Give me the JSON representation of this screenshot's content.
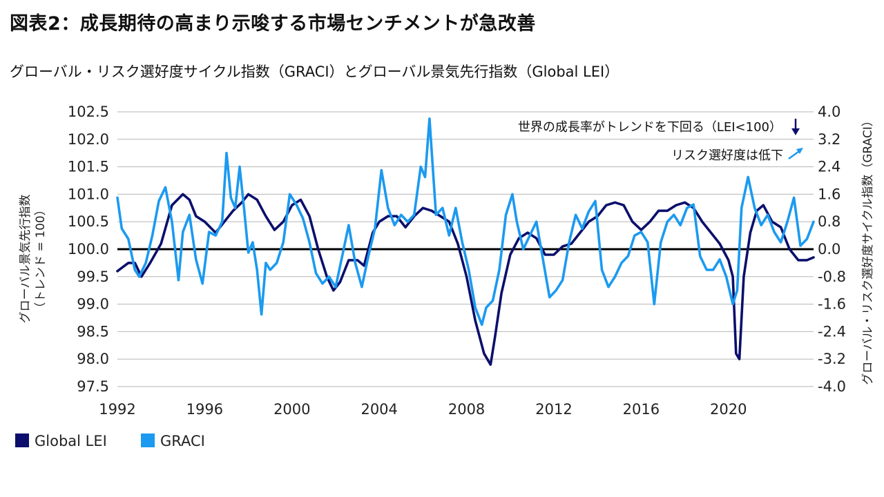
{
  "title": "図表2：成長期待の高まり示唆する市場センチメントが急改善",
  "subtitle": "グローバル・リスク選好度サイクル指数（GRACI）とグローバル景気先行指数（Global LEI）",
  "colors": {
    "lei": "#0b0f6b",
    "graci": "#1b9af0",
    "grid": "#b5b5b5",
    "zero": "#000000"
  },
  "chart_data": {
    "type": "line",
    "x_ticks": [
      "1992",
      "1996",
      "2000",
      "2004",
      "2008",
      "2012",
      "2016",
      "2020"
    ],
    "x_range": [
      1992,
      2023.9
    ],
    "y_left": {
      "label_line1": "グローバル景気先行指数",
      "label_line2": "（トレンド = 100）",
      "range": [
        97.5,
        102.5
      ],
      "ticks": [
        "102.5",
        "102.0",
        "101.5",
        "101.0",
        "100.5",
        "100.0",
        "99.5",
        "99.0",
        "98.5",
        "98.0",
        "97.5"
      ]
    },
    "y_right": {
      "label": "グローバル・リスク選好度サイクル指数（GRACI）",
      "range": [
        -4.0,
        4.0
      ],
      "ticks": [
        "4.0",
        "3.2",
        "2.4",
        "1.6",
        "0.8",
        "0.0",
        "-0.8",
        "-1.6",
        "-2.4",
        "-3.2",
        "-4.0"
      ]
    },
    "annotations": [
      {
        "text": "世界の成長率がトレンドを下回る（LEI<100）",
        "arrow": "down"
      },
      {
        "text": "リスク選好度は低下",
        "arrow": "up-right"
      }
    ],
    "series": [
      {
        "name": "Global LEI",
        "axis": "left",
        "x": [
          1992,
          1992.5,
          1992.8,
          1993.1,
          1993.5,
          1994,
          1994.5,
          1995,
          1995.3,
          1995.6,
          1996,
          1996.5,
          1996.9,
          1997.3,
          1997.7,
          1998,
          1998.4,
          1998.8,
          1999.2,
          1999.6,
          2000,
          2000.4,
          2000.8,
          2001.2,
          2001.6,
          2001.9,
          2002.2,
          2002.6,
          2003,
          2003.3,
          2003.7,
          2004,
          2004.4,
          2004.8,
          2005.2,
          2005.6,
          2006,
          2006.4,
          2006.8,
          2007.2,
          2007.6,
          2008,
          2008.4,
          2008.8,
          2009.1,
          2009.3,
          2009.6,
          2010,
          2010.4,
          2010.8,
          2011.2,
          2011.6,
          2012,
          2012.4,
          2012.8,
          2013.2,
          2013.6,
          2014,
          2014.4,
          2014.8,
          2015.2,
          2015.6,
          2016,
          2016.4,
          2016.8,
          2017.2,
          2017.6,
          2018,
          2018.4,
          2018.8,
          2019.2,
          2019.6,
          2020,
          2020.2,
          2020.35,
          2020.5,
          2020.7,
          2021,
          2021.3,
          2021.6,
          2022,
          2022.4,
          2022.8,
          2023.2,
          2023.6,
          2023.9
        ],
        "values": [
          99.6,
          99.75,
          99.75,
          99.5,
          99.75,
          100.1,
          100.8,
          101.0,
          100.9,
          100.6,
          100.5,
          100.3,
          100.5,
          100.7,
          100.85,
          101.0,
          100.9,
          100.6,
          100.35,
          100.5,
          100.8,
          100.9,
          100.6,
          100.0,
          99.5,
          99.25,
          99.4,
          99.8,
          99.8,
          99.7,
          100.3,
          100.5,
          100.6,
          100.6,
          100.4,
          100.6,
          100.75,
          100.7,
          100.6,
          100.5,
          100.1,
          99.5,
          98.7,
          98.1,
          97.9,
          98.4,
          99.2,
          99.9,
          100.2,
          100.3,
          100.2,
          99.9,
          99.9,
          100.05,
          100.1,
          100.3,
          100.5,
          100.6,
          100.8,
          100.85,
          100.8,
          100.5,
          100.35,
          100.5,
          100.7,
          100.7,
          100.8,
          100.85,
          100.75,
          100.5,
          100.3,
          100.1,
          99.8,
          99.5,
          98.1,
          98.0,
          99.5,
          100.3,
          100.7,
          100.8,
          100.5,
          100.4,
          100.0,
          99.8,
          99.8,
          99.85
        ]
      },
      {
        "name": "GRACI",
        "axis": "right",
        "x": [
          1992,
          1992.2,
          1992.5,
          1992.8,
          1993,
          1993.3,
          1993.6,
          1993.9,
          1994.2,
          1994.5,
          1994.8,
          1995,
          1995.3,
          1995.6,
          1995.9,
          1996.2,
          1996.5,
          1996.8,
          1997,
          1997.2,
          1997.4,
          1997.6,
          1997.8,
          1998,
          1998.2,
          1998.4,
          1998.6,
          1998.8,
          1999,
          1999.3,
          1999.6,
          1999.9,
          2000.2,
          2000.5,
          2000.8,
          2001.1,
          2001.4,
          2001.7,
          2002,
          2002.3,
          2002.6,
          2002.9,
          2003.2,
          2003.5,
          2003.8,
          2004.1,
          2004.4,
          2004.7,
          2005,
          2005.3,
          2005.6,
          2005.9,
          2006.1,
          2006.3,
          2006.6,
          2006.9,
          2007.2,
          2007.5,
          2007.8,
          2008.1,
          2008.4,
          2008.7,
          2008.9,
          2009.2,
          2009.5,
          2009.8,
          2010.1,
          2010.3,
          2010.6,
          2010.9,
          2011.2,
          2011.5,
          2011.8,
          2012.1,
          2012.4,
          2012.7,
          2013,
          2013.3,
          2013.6,
          2013.9,
          2014.2,
          2014.5,
          2014.8,
          2015.1,
          2015.4,
          2015.7,
          2016,
          2016.3,
          2016.6,
          2016.9,
          2017.2,
          2017.5,
          2017.8,
          2018.1,
          2018.4,
          2018.7,
          2019,
          2019.3,
          2019.6,
          2019.9,
          2020.2,
          2020.4,
          2020.6,
          2020.9,
          2021.2,
          2021.5,
          2021.8,
          2022.1,
          2022.4,
          2022.7,
          2023,
          2023.3,
          2023.6,
          2023.9
        ],
        "values": [
          1.5,
          0.6,
          0.3,
          -0.6,
          -0.8,
          -0.4,
          0.4,
          1.4,
          1.8,
          0.8,
          -0.9,
          0.5,
          1.0,
          -0.3,
          -1.0,
          0.5,
          0.4,
          0.8,
          2.8,
          1.5,
          1.2,
          2.4,
          1.2,
          -0.1,
          0.2,
          -0.6,
          -1.9,
          -0.4,
          -0.6,
          -0.4,
          0.2,
          1.6,
          1.3,
          0.9,
          0.2,
          -0.7,
          -1.0,
          -0.8,
          -1.1,
          -0.2,
          0.7,
          -0.4,
          -1.1,
          -0.2,
          0.6,
          2.3,
          1.2,
          0.7,
          1.0,
          0.8,
          1.0,
          2.4,
          2.1,
          3.8,
          1.0,
          1.2,
          0.4,
          1.2,
          0.2,
          -0.6,
          -1.7,
          -2.2,
          -1.7,
          -1.5,
          -0.6,
          1.0,
          1.6,
          0.8,
          0.0,
          0.4,
          0.8,
          -0.3,
          -1.4,
          -1.2,
          -0.9,
          0.2,
          1.0,
          0.6,
          1.1,
          1.4,
          -0.6,
          -1.1,
          -0.8,
          -0.4,
          -0.2,
          0.4,
          0.5,
          0.2,
          -1.6,
          0.2,
          0.8,
          1.0,
          0.7,
          1.2,
          1.3,
          -0.2,
          -0.6,
          -0.6,
          -0.3,
          -0.8,
          -1.6,
          -1.2,
          1.2,
          2.1,
          1.2,
          0.7,
          1.0,
          0.5,
          0.2,
          0.8,
          1.5,
          0.1,
          0.3,
          0.8
        ]
      }
    ]
  }
}
